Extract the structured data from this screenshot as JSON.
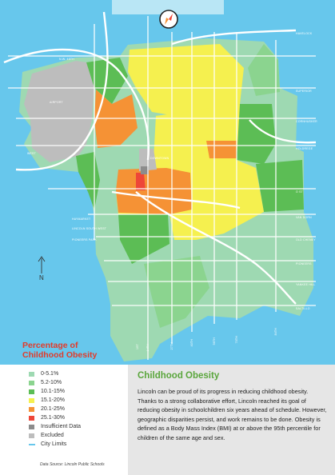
{
  "map": {
    "title_heading": "Percentage of Childhood Obesity",
    "north_label": "N",
    "street_labels": [
      "N.W. 48TH",
      "HAVELOCK",
      "SUPERIOR",
      "CORNHUSKER",
      "HOLDREGE",
      "O ST",
      "VAN DORN",
      "OLD CHENEY",
      "PIONEERS",
      "YANKEE HILL",
      "SALTILLO",
      "84TH",
      "70TH",
      "56TH",
      "40TH",
      "27TH",
      "14TH",
      "1ST",
      "AIRPORT",
      "WEST",
      "DOWNTOWN"
    ],
    "callouts": [
      "HAYMARKET",
      "LINCOLN SOUTH WEST",
      "PIONEERS PARK"
    ]
  },
  "legend": {
    "title": "Percentage of Childhood Obesity",
    "items": [
      {
        "label": "0-5.1%",
        "color": "#9ed9b2",
        "kind": "box"
      },
      {
        "label": "5.2-10%",
        "color": "#8bd48f",
        "kind": "box"
      },
      {
        "label": "10.1-15%",
        "color": "#5cbd55",
        "kind": "box"
      },
      {
        "label": "15.1-20%",
        "color": "#f5f04f",
        "kind": "box"
      },
      {
        "label": "20.1-25%",
        "color": "#f59235",
        "kind": "box"
      },
      {
        "label": "25.1-30%",
        "color": "#ee4638",
        "kind": "box"
      },
      {
        "label": "Insufficient Data",
        "color": "#8c8c8c",
        "kind": "box"
      },
      {
        "label": "Excluded",
        "color": "#bdbdbd",
        "kind": "box"
      },
      {
        "label": "City Limits",
        "color": "#67c7ec",
        "kind": "line"
      }
    ],
    "source": "Data Source:  Lincoln Public Schools"
  },
  "info": {
    "title": "Childhood Obesity",
    "body": "Lincoln can be proud of its progress in reducing childhood obesity. Thanks to a strong collaborative effort, Lincoln reached its goal of reducing obesity in schoolchildren six years ahead of schedule. However, geographic disparities persist, and work remains to be done. Obesity is defined as a Body Mass Index (BMI) at or above the 95th percentile for children of the same age and sex."
  }
}
